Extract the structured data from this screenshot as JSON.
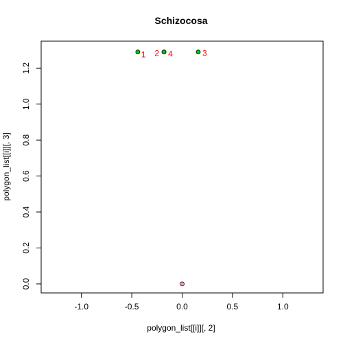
{
  "chart_data": {
    "type": "scatter",
    "title": "Schizocosa",
    "xlabel": "polygon_list[[i]][, 2]",
    "ylabel": "polygon_list[[i]][, 3]",
    "xlim": [
      -1.4,
      1.4
    ],
    "ylim": [
      -0.05,
      1.35
    ],
    "x_ticks": [
      -1.0,
      -0.5,
      0.0,
      0.5,
      1.0
    ],
    "x_tick_labels": [
      "-1.0",
      "-0.5",
      "0.0",
      "0.5",
      "1.0"
    ],
    "y_ticks": [
      0.0,
      0.2,
      0.4,
      0.6,
      0.8,
      1.0,
      1.2
    ],
    "y_tick_labels": [
      "0.0",
      "0.2",
      "0.4",
      "0.6",
      "0.8",
      "1.0",
      "1.2"
    ],
    "grid": false,
    "points": [
      {
        "x": -0.44,
        "y": 1.29,
        "label": "1",
        "color": "#00cc00"
      },
      {
        "x": -0.18,
        "y": 1.29,
        "label": "2",
        "color": "#00cc00"
      },
      {
        "x": 0.16,
        "y": 1.29,
        "label": "3",
        "color": "#00cc00"
      },
      {
        "x": -0.18,
        "y": 1.29,
        "label": "4",
        "color": "#00cc00"
      },
      {
        "x": 0.0,
        "y": 0.0,
        "label": "",
        "color": "#ff99cc"
      }
    ],
    "label_color": "#ff0000"
  }
}
